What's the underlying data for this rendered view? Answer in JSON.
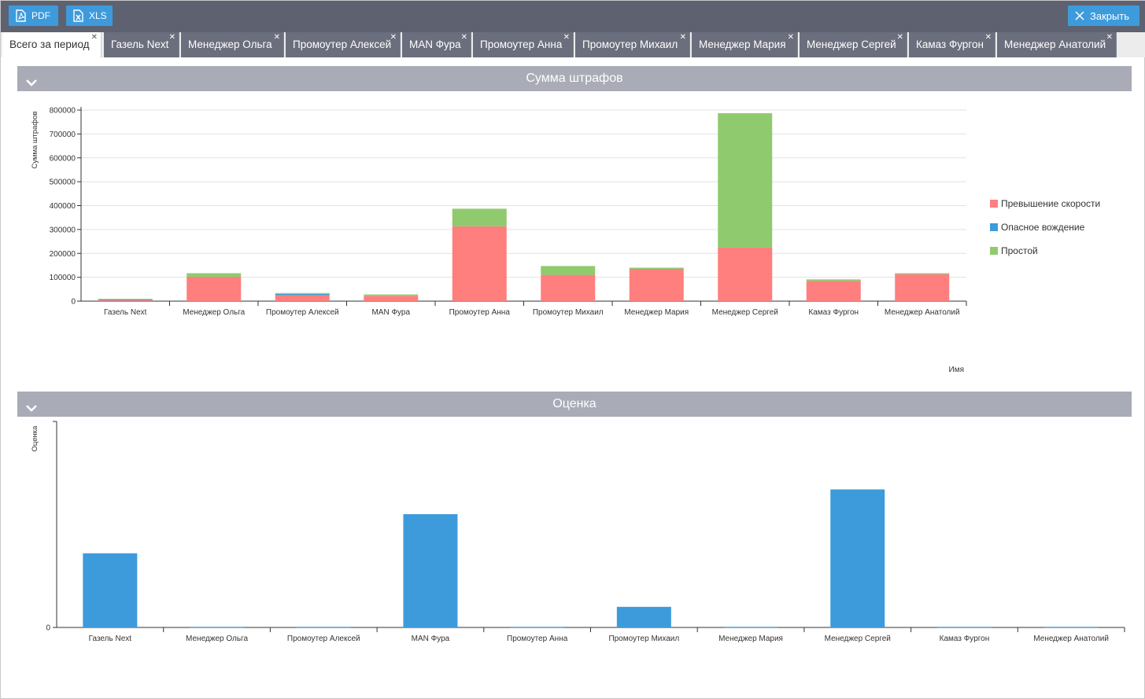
{
  "toolbar": {
    "pdf_label": "PDF",
    "xls_label": "XLS",
    "close_label": "Закрыть"
  },
  "tabs": [
    {
      "label": "Всего за период",
      "active": true
    },
    {
      "label": "Газель Next"
    },
    {
      "label": "Менеджер Ольга"
    },
    {
      "label": "Промоутер Алексей"
    },
    {
      "label": "MAN Фура"
    },
    {
      "label": "Промоутер Анна"
    },
    {
      "label": "Промоутер Михаил"
    },
    {
      "label": "Менеджер Мария"
    },
    {
      "label": "Менеджер Сергей"
    },
    {
      "label": "Камаз Фургон"
    },
    {
      "label": "Менеджер Анатолий"
    }
  ],
  "colors": {
    "speeding": "#fe7f7d",
    "dangerous": "#3d9bdc",
    "idle": "#8fcb6e",
    "toolbar": "#5e6170",
    "section": "#a9abb6"
  },
  "sections": {
    "fines_title": "Сумма штрафов",
    "score_title": "Оценка"
  },
  "chart_data": [
    {
      "type": "bar",
      "stacked": true,
      "title": "Сумма штрафов",
      "xlabel": "Имя",
      "ylabel": "Сумма штрафов",
      "ylim": [
        0,
        800000
      ],
      "yticks": [
        0,
        100000,
        200000,
        300000,
        400000,
        500000,
        600000,
        700000,
        800000
      ],
      "legend_position": "right",
      "grid": true,
      "categories": [
        "Газель Next",
        "Менеджер Ольга",
        "Промоутер Алексей",
        "MAN Фура",
        "Промоутер Анна",
        "Промоутер Михаил",
        "Менеджер Мария",
        "Менеджер Сергей",
        "Камаз Фургон",
        "Менеджер Анатолий"
      ],
      "series": [
        {
          "name": "Превышение скорости",
          "values": [
            6000,
            102000,
            25000,
            22000,
            313000,
            110000,
            135000,
            224000,
            85000,
            113000
          ]
        },
        {
          "name": "Опасное вождение",
          "values": [
            1000,
            0,
            5000,
            0,
            0,
            0,
            0,
            0,
            0,
            0
          ]
        },
        {
          "name": "Простой",
          "values": [
            3000,
            15000,
            4000,
            6000,
            74000,
            37000,
            5000,
            563000,
            6000,
            4000
          ]
        }
      ]
    },
    {
      "type": "bar",
      "title": "Оценка",
      "xlabel": "",
      "ylabel": "Оценка",
      "ylim": [
        0,
        100
      ],
      "yticks": [
        0
      ],
      "grid": false,
      "categories": [
        "Газель Next",
        "Менеджер Ольга",
        "Промоутер Алексей",
        "MAN Фура",
        "Промоутер Анна",
        "Промоутер Михаил",
        "Менеджер Мария",
        "Менеджер Сергей",
        "Камаз Фургон",
        "Менеджер Анатолий"
      ],
      "series": [
        {
          "values": [
            36,
            0.3,
            0.3,
            55,
            0.3,
            10,
            0.3,
            67,
            0.3,
            0.3
          ]
        }
      ]
    }
  ]
}
